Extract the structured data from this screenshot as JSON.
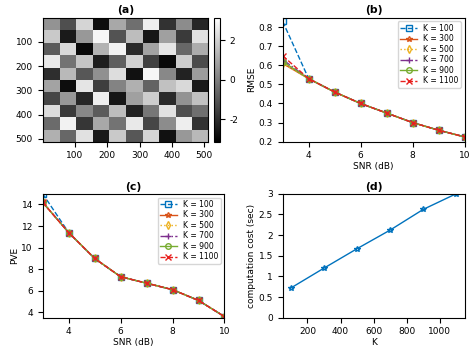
{
  "chart_data": [
    {
      "type": "heatmap",
      "title": "(a)",
      "xlim": [
        0,
        512
      ],
      "ylim": [
        512,
        0
      ],
      "xticks": [
        100,
        200,
        300,
        400,
        500
      ],
      "yticks": [
        100,
        200,
        300,
        400,
        500
      ],
      "color": "gray",
      "color_range": [
        -3.14,
        3.14
      ],
      "color_ticks": [
        -2,
        0,
        2
      ],
      "cells": [
        [
          0.5,
          -1.2,
          2.1,
          -2.8,
          1.0,
          -0.4,
          2.7,
          -1.9,
          0.3,
          -2.2
        ],
        [
          1.8,
          -2.5,
          0.6,
          2.9,
          -1.1,
          1.5,
          -2.6,
          0.8,
          -1.7,
          2.4
        ],
        [
          -0.9,
          2.2,
          -2.9,
          1.3,
          2.8,
          -2.1,
          0.9,
          2.5,
          -0.6,
          1.1
        ],
        [
          2.6,
          -0.3,
          1.7,
          -2.4,
          -0.8,
          2.0,
          -1.5,
          -2.9,
          1.9,
          -1.3
        ],
        [
          -2.0,
          1.4,
          -1.0,
          0.4,
          2.3,
          -2.7,
          2.9,
          0.2,
          -2.3,
          0.7
        ],
        [
          0.9,
          -2.8,
          2.5,
          -1.6,
          0.1,
          1.2,
          -0.7,
          1.6,
          2.2,
          -2.5
        ],
        [
          -1.4,
          0.6,
          -2.2,
          2.7,
          -2.6,
          0.8,
          1.9,
          -2.1,
          0.5,
          1.6
        ],
        [
          2.3,
          -1.7,
          0.2,
          -0.9,
          1.5,
          -2.3,
          -0.2,
          2.4,
          -1.2,
          -0.4
        ],
        [
          -0.5,
          2.8,
          -1.8,
          1.0,
          -0.3,
          2.6,
          -1.4,
          0.3,
          2.7,
          -1.9
        ],
        [
          1.2,
          -0.6,
          2.4,
          -2.5,
          1.8,
          -1.0,
          2.1,
          -2.7,
          0.6,
          1.4
        ]
      ]
    },
    {
      "type": "line",
      "title": "(b)",
      "x_label": "SNR (dB)",
      "y_label": "RMSE",
      "x": [
        3,
        4,
        5,
        6,
        7,
        8,
        9,
        10
      ],
      "xlim": [
        3,
        10
      ],
      "xticks": [
        4,
        6,
        8,
        10
      ],
      "ylim": [
        0.2,
        0.85
      ],
      "yticks": [
        0.2,
        0.3,
        0.4,
        0.5,
        0.6,
        0.7,
        0.8
      ],
      "legend": "upper right",
      "series": [
        {
          "name": "K = 100",
          "color": "#0072BD",
          "marker": "square",
          "line_style": "dashed",
          "values": [
            0.83,
            0.53,
            0.46,
            0.4,
            0.35,
            0.3,
            0.26,
            0.225
          ]
        },
        {
          "name": "K = 300",
          "color": "#D95319",
          "marker": "star",
          "line_style": "solid",
          "values": [
            0.61,
            0.53,
            0.46,
            0.4,
            0.35,
            0.3,
            0.26,
            0.225
          ]
        },
        {
          "name": "K = 500",
          "color": "#EDB120",
          "marker": "diamond",
          "line_style": "dotted",
          "values": [
            0.61,
            0.53,
            0.46,
            0.4,
            0.35,
            0.3,
            0.26,
            0.225
          ]
        },
        {
          "name": "K = 700",
          "color": "#7E2F8E",
          "marker": "plus",
          "line_style": "dashdot",
          "values": [
            0.63,
            0.53,
            0.46,
            0.4,
            0.35,
            0.3,
            0.26,
            0.225
          ]
        },
        {
          "name": "K = 900",
          "color": "#77AC30",
          "marker": "circle",
          "line_style": "solid",
          "values": [
            0.62,
            0.53,
            0.46,
            0.4,
            0.35,
            0.3,
            0.26,
            0.225
          ]
        },
        {
          "name": "K = 1100",
          "color": "#E8211F",
          "marker": "x",
          "line_style": "dashed",
          "values": [
            0.65,
            0.53,
            0.46,
            0.4,
            0.35,
            0.3,
            0.26,
            0.225
          ]
        }
      ]
    },
    {
      "type": "line",
      "title": "(c)",
      "x_label": "SNR (dB)",
      "y_label": "PVE",
      "x": [
        3,
        4,
        5,
        6,
        7,
        8,
        9,
        10
      ],
      "xlim": [
        3,
        10
      ],
      "xticks": [
        4,
        6,
        8,
        10
      ],
      "ylim": [
        3.5,
        15
      ],
      "yticks": [
        4,
        6,
        8,
        10,
        12,
        14
      ],
      "legend": "upper right",
      "series": [
        {
          "name": "K = 100",
          "color": "#0072BD",
          "marker": "square",
          "line_style": "dashed",
          "values": [
            15.0,
            11.4,
            9.0,
            7.3,
            6.7,
            6.1,
            5.1,
            3.6
          ]
        },
        {
          "name": "K = 300",
          "color": "#D95319",
          "marker": "star",
          "line_style": "solid",
          "values": [
            14.2,
            11.4,
            9.0,
            7.3,
            6.7,
            6.1,
            5.1,
            3.6
          ]
        },
        {
          "name": "K = 500",
          "color": "#EDB120",
          "marker": "diamond",
          "line_style": "dotted",
          "values": [
            14.2,
            11.4,
            9.0,
            7.3,
            6.7,
            6.1,
            5.1,
            3.6
          ]
        },
        {
          "name": "K = 700",
          "color": "#7E2F8E",
          "marker": "plus",
          "line_style": "dashdot",
          "values": [
            14.2,
            11.4,
            9.0,
            7.3,
            6.7,
            6.1,
            5.1,
            3.6
          ]
        },
        {
          "name": "K = 900",
          "color": "#77AC30",
          "marker": "circle",
          "line_style": "solid",
          "values": [
            14.2,
            11.4,
            9.0,
            7.3,
            6.7,
            6.1,
            5.1,
            3.6
          ]
        },
        {
          "name": "K = 1100",
          "color": "#E8211F",
          "marker": "x",
          "line_style": "dashed",
          "values": [
            14.2,
            11.4,
            9.0,
            7.3,
            6.7,
            6.1,
            5.1,
            3.6
          ]
        }
      ]
    },
    {
      "type": "line",
      "title": "(d)",
      "x_label": "K",
      "y_label": "computation cost (sec)",
      "x": [
        100,
        300,
        500,
        700,
        900,
        1100
      ],
      "xlim": [
        50,
        1150
      ],
      "xticks": [
        200,
        400,
        600,
        800,
        1000
      ],
      "ylim": [
        0,
        3
      ],
      "yticks": [
        0,
        0.5,
        1,
        1.5,
        2,
        2.5,
        3
      ],
      "series": [
        {
          "color": "#0072BD",
          "marker": "star",
          "line_style": "solid",
          "values": [
            0.72,
            1.2,
            1.67,
            2.12,
            2.62,
            3.0
          ]
        }
      ]
    }
  ]
}
